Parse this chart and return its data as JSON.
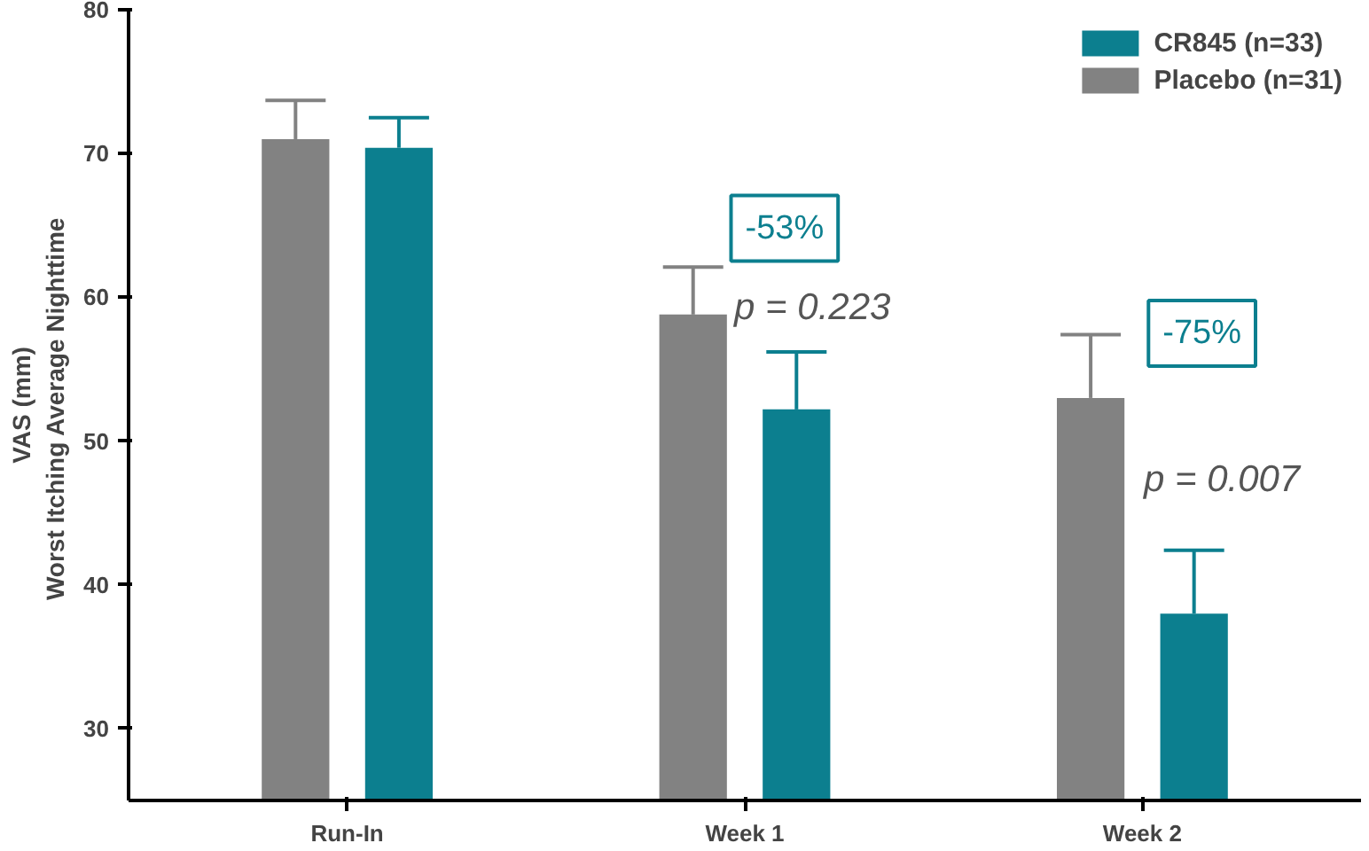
{
  "chart_data": {
    "type": "bar",
    "ylabel": "VAS (mm)\nWorst Itching  Average Nighttime",
    "categories": [
      "Run-In",
      "Week 1",
      "Week 2"
    ],
    "series": [
      {
        "name": "Placebo (n=31)",
        "color": "#828282",
        "values": [
          71,
          58.8,
          53
        ],
        "errors": [
          [
            71,
            73.7
          ],
          [
            58.8,
            62.1
          ],
          [
            53,
            57.4
          ]
        ]
      },
      {
        "name": "CR845 (n=33)",
        "color": "#0c7f8f",
        "values": [
          70.4,
          52.2,
          38
        ],
        "errors": [
          [
            70.4,
            72.5
          ],
          [
            52.2,
            56.2
          ],
          [
            38,
            42.4
          ]
        ]
      }
    ],
    "ylim": [
      25,
      80
    ],
    "yticks": [
      30,
      40,
      50,
      60,
      70,
      80
    ],
    "grid": false,
    "legend": "top right",
    "annotations": [
      "-53%",
      "p = 0.223",
      "-75%",
      "p = 0.007"
    ]
  }
}
